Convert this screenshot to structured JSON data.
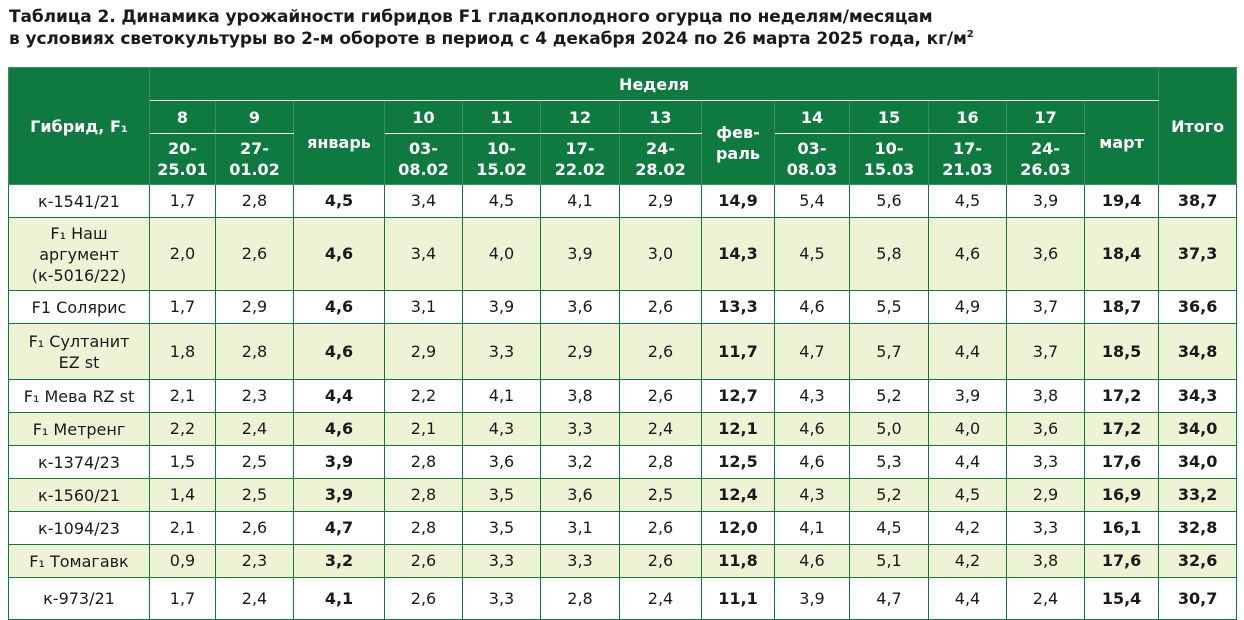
{
  "title": {
    "line1": "Таблица 2. Динамика урожайности гибридов F1 гладкоплодного огурца по неделям/месяцам",
    "line2": "в условиях светокультуры во 2-м обороте в период с 4 декабря 2024 по 26 марта 2025 года, кг/м",
    "sup": "2"
  },
  "header": {
    "hybrid": "Гибрид, F₁",
    "week_group": "Неделя",
    "total": "Итого",
    "columns": [
      {
        "week": "8",
        "dates": "20-\n25.01"
      },
      {
        "week": "9",
        "dates": "27-\n01.02"
      },
      {
        "month": "январь"
      },
      {
        "week": "10",
        "dates": "03-\n08.02"
      },
      {
        "week": "11",
        "dates": "10-\n15.02"
      },
      {
        "week": "12",
        "dates": "17-\n22.02"
      },
      {
        "week": "13",
        "dates": "24-\n28.02"
      },
      {
        "month": "фев-\nраль"
      },
      {
        "week": "14",
        "dates": "03-\n08.03"
      },
      {
        "week": "15",
        "dates": "10-\n15.03"
      },
      {
        "week": "16",
        "dates": "17-\n21.03"
      },
      {
        "week": "17",
        "dates": "24-\n26.03"
      },
      {
        "month": "март"
      }
    ]
  },
  "rows": [
    {
      "hybrid": "к-1541/21",
      "values": [
        "1,7",
        "2,8",
        "4,5",
        "3,4",
        "4,5",
        "4,1",
        "2,9",
        "14,9",
        "5,4",
        "5,6",
        "4,5",
        "3,9",
        "19,4"
      ],
      "total": "38,7"
    },
    {
      "hybrid": "F₁ Наш\nаргумент\n(к-5016/22)",
      "values": [
        "2,0",
        "2,6",
        "4,6",
        "3,4",
        "4,0",
        "3,9",
        "3,0",
        "14,3",
        "4,5",
        "5,8",
        "4,6",
        "3,6",
        "18,4"
      ],
      "total": "37,3"
    },
    {
      "hybrid": "F1 Солярис",
      "values": [
        "1,7",
        "2,9",
        "4,6",
        "3,1",
        "3,9",
        "3,6",
        "2,6",
        "13,3",
        "4,6",
        "5,5",
        "4,9",
        "3,7",
        "18,7"
      ],
      "total": "36,6"
    },
    {
      "hybrid": "F₁ Султанит\nEZ st",
      "values": [
        "1,8",
        "2,8",
        "4,6",
        "2,9",
        "3,3",
        "2,9",
        "2,6",
        "11,7",
        "4,7",
        "5,7",
        "4,4",
        "3,7",
        "18,5"
      ],
      "total": "34,8"
    },
    {
      "hybrid": "F₁ Мева RZ st",
      "values": [
        "2,1",
        "2,3",
        "4,4",
        "2,2",
        "4,1",
        "3,8",
        "2,6",
        "12,7",
        "4,3",
        "5,2",
        "3,9",
        "3,8",
        "17,2"
      ],
      "total": "34,3"
    },
    {
      "hybrid": "F₁ Метренг",
      "values": [
        "2,2",
        "2,4",
        "4,6",
        "2,1",
        "4,3",
        "3,3",
        "2,4",
        "12,1",
        "4,6",
        "5,0",
        "4,0",
        "3,6",
        "17,2"
      ],
      "total": "34,0"
    },
    {
      "hybrid": "к-1374/23",
      "values": [
        "1,5",
        "2,5",
        "3,9",
        "2,8",
        "3,6",
        "3,2",
        "2,8",
        "12,5",
        "4,6",
        "5,3",
        "4,4",
        "3,3",
        "17,6"
      ],
      "total": "34,0"
    },
    {
      "hybrid": "к-1560/21",
      "values": [
        "1,4",
        "2,5",
        "3,9",
        "2,8",
        "3,5",
        "3,6",
        "2,5",
        "12,4",
        "4,3",
        "5,2",
        "4,5",
        "2,9",
        "16,9"
      ],
      "total": "33,2"
    },
    {
      "hybrid": "к-1094/23",
      "values": [
        "2,1",
        "2,6",
        "4,7",
        "2,8",
        "3,5",
        "3,1",
        "2,6",
        "12,0",
        "4,1",
        "4,5",
        "4,2",
        "3,3",
        "16,1"
      ],
      "total": "32,8"
    },
    {
      "hybrid": "F₁  Томагавк",
      "values": [
        "0,9",
        "2,3",
        "3,2",
        "2,6",
        "3,3",
        "3,3",
        "2,6",
        "11,8",
        "4,6",
        "5,1",
        "4,2",
        "3,8",
        "17,6"
      ],
      "total": "32,6"
    },
    {
      "hybrid": "к-973/21",
      "values": [
        "1,7",
        "2,4",
        "4,1",
        "2,6",
        "3,3",
        "2,8",
        "2,4",
        "11,1",
        "3,9",
        "4,7",
        "4,4",
        "2,4",
        "15,4"
      ],
      "total": "30,7"
    }
  ],
  "colors": {
    "header_bg": "#0f7a3f",
    "header_text": "#ffffff",
    "row_alt_bg": "#eef3d6",
    "border": "#0f7a3f"
  }
}
